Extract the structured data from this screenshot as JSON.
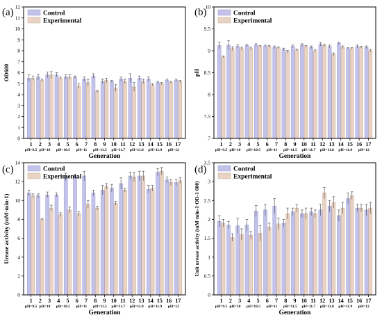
{
  "colors": {
    "control": "#c3c3ea",
    "control_edge": "#9a9ad6",
    "experimental": "#e8d3c4",
    "experimental_edge": "#c9a98f",
    "error": "#555555"
  },
  "chart_data": [
    {
      "panel": "(a)",
      "type": "bar",
      "ylabel": "OD600",
      "xlabel": "Generation",
      "ylim": [
        0,
        12
      ],
      "yticks": [
        0,
        1,
        2,
        3,
        4,
        5,
        6,
        7,
        8,
        9,
        10,
        11,
        12
      ],
      "categories": [
        "1",
        "2",
        "3",
        "4",
        "5",
        "6",
        "7",
        "8",
        "9",
        "10",
        "11",
        "12",
        "13",
        "14",
        "15",
        "16",
        "17"
      ],
      "ph_labels": [
        {
          "label": "pH=9.5",
          "at": 1
        },
        {
          "label": "pH=10",
          "at": 2.5
        },
        {
          "label": "pH=10.5",
          "at": 4.5
        },
        {
          "label": "pH=11",
          "at": 6.5
        },
        {
          "label": "pH=11.5",
          "at": 8.5
        },
        {
          "label": "pH=11.7",
          "at": 10.5
        },
        {
          "label": "pH=11.8",
          "at": 12.5
        },
        {
          "label": "pH=11.9",
          "at": 14.5
        },
        {
          "label": "pH=12",
          "at": 16.5
        }
      ],
      "legend": [
        "Control",
        "Experimental"
      ],
      "legend_position": "top-left",
      "series": [
        {
          "name": "Control",
          "values": [
            5.5,
            5.6,
            5.8,
            5.8,
            5.6,
            5.6,
            5.4,
            5.7,
            5.2,
            5.2,
            5.4,
            5.5,
            5.5,
            5.4,
            5.1,
            5.3,
            5.3
          ],
          "errors": [
            0.3,
            0.25,
            0.25,
            0.2,
            0.2,
            0.1,
            0.2,
            0.2,
            0.2,
            0.1,
            0.2,
            0.4,
            0.2,
            0.2,
            0.1,
            0.1,
            0.1
          ]
        },
        {
          "name": "Experimental",
          "values": [
            5.5,
            5.3,
            5.8,
            5.5,
            5.6,
            4.8,
            5.1,
            4.3,
            5.3,
            4.6,
            5.2,
            4.7,
            5.2,
            4.9,
            5.0,
            5.1,
            5.2
          ],
          "errors": [
            0.2,
            0.1,
            0.3,
            0.1,
            0.2,
            0.2,
            0.3,
            0.1,
            0.2,
            0.3,
            0.2,
            0.4,
            0.2,
            0.1,
            0.1,
            0.1,
            0.1
          ]
        }
      ]
    },
    {
      "panel": "(b)",
      "type": "bar",
      "ylabel": "pH",
      "xlabel": "Generation",
      "ylim": [
        7.0,
        10.0
      ],
      "yticks": [
        7.0,
        7.5,
        8.0,
        8.5,
        9.0,
        9.5,
        10.0
      ],
      "categories": [
        "1",
        "2",
        "3",
        "4",
        "5",
        "6",
        "7",
        "8",
        "9",
        "10",
        "11",
        "12",
        "13",
        "14",
        "15",
        "16",
        "17"
      ],
      "ph_labels": [
        {
          "label": "pH=9.5",
          "at": 1
        },
        {
          "label": "pH=10",
          "at": 2.5
        },
        {
          "label": "pH=10.5",
          "at": 4.5
        },
        {
          "label": "pH=11",
          "at": 6.5
        },
        {
          "label": "pH=11.5",
          "at": 8.5
        },
        {
          "label": "pH=11.7",
          "at": 10.5
        },
        {
          "label": "pH=11.8",
          "at": 12.5
        },
        {
          "label": "pH=11.9",
          "at": 14.5
        },
        {
          "label": "pH=12",
          "at": 16.5
        }
      ],
      "legend": [
        "Control",
        "Experimental"
      ],
      "legend_position": "top-left",
      "series": [
        {
          "name": "Control",
          "values": [
            9.12,
            9.13,
            9.1,
            9.12,
            9.13,
            9.11,
            9.08,
            9.03,
            9.1,
            9.13,
            9.08,
            9.15,
            9.1,
            9.17,
            9.05,
            9.1,
            9.08
          ],
          "errors": [
            0.08,
            0.1,
            0.04,
            0.03,
            0.03,
            0.02,
            0.03,
            0.03,
            0.03,
            0.03,
            0.03,
            0.04,
            0.03,
            0.03,
            0.02,
            0.03,
            0.03
          ]
        },
        {
          "name": "Experimental",
          "values": [
            8.86,
            9.05,
            9.05,
            9.05,
            9.1,
            9.1,
            9.07,
            8.98,
            9.02,
            9.1,
            9.0,
            9.12,
            8.92,
            9.08,
            9.05,
            9.08,
            9.0
          ],
          "errors": [
            0.02,
            0.04,
            0.03,
            0.03,
            0.02,
            0.02,
            0.02,
            0.03,
            0.02,
            0.02,
            0.02,
            0.03,
            0.03,
            0.03,
            0.02,
            0.02,
            0.03
          ]
        }
      ]
    },
    {
      "panel": "(c)",
      "type": "bar",
      "ylabel": "Urease activity (mM·min-1)",
      "xlabel": "Generation",
      "ylim": [
        0,
        14
      ],
      "yticks": [
        0,
        2,
        4,
        6,
        8,
        10,
        12,
        14
      ],
      "categories": [
        "1",
        "2",
        "3",
        "4",
        "5",
        "6",
        "7",
        "8",
        "9",
        "10",
        "11",
        "12",
        "13",
        "14",
        "15",
        "16",
        "17"
      ],
      "ph_labels": [
        {
          "label": "pH=9.5",
          "at": 1
        },
        {
          "label": "pH=10",
          "at": 2.5
        },
        {
          "label": "pH=10.5",
          "at": 4.5
        },
        {
          "label": "pH=11",
          "at": 6.5
        },
        {
          "label": "pH=11.5",
          "at": 8.5
        },
        {
          "label": "pH=11.7",
          "at": 10.5
        },
        {
          "label": "pH=11.8",
          "at": 12.5
        },
        {
          "label": "pH=11.9",
          "at": 14.5
        },
        {
          "label": "pH=12",
          "at": 16.5
        }
      ],
      "legend": [
        "Control",
        "Experimental"
      ],
      "legend_position": "top-left",
      "series": [
        {
          "name": "Control",
          "values": [
            10.8,
            10.5,
            10.6,
            10.6,
            12.5,
            12.6,
            12.6,
            10.8,
            11.1,
            11.3,
            11.8,
            12.6,
            12.6,
            11.2,
            13.0,
            12.2,
            11.9
          ],
          "errors": [
            0.3,
            0.2,
            0.3,
            0.2,
            0.4,
            0.2,
            0.5,
            0.3,
            0.5,
            0.4,
            0.6,
            0.4,
            0.5,
            0.4,
            0.4,
            0.3,
            0.3
          ]
        },
        {
          "name": "Experimental",
          "values": [
            10.5,
            8.0,
            9.2,
            8.5,
            9.0,
            8.6,
            9.6,
            9.2,
            11.5,
            9.7,
            11.1,
            12.5,
            12.6,
            11.3,
            13.1,
            11.9,
            12.1
          ],
          "errors": [
            0.2,
            0.1,
            0.3,
            0.2,
            0.3,
            0.2,
            0.4,
            0.2,
            0.3,
            0.2,
            0.2,
            0.5,
            0.5,
            0.3,
            0.4,
            0.3,
            0.3
          ]
        }
      ]
    },
    {
      "panel": "(d)",
      "type": "bar",
      "ylabel": "Unit urease activity (mM·min-1·OD-1 600)",
      "xlabel": "Generation",
      "ylim": [
        0.0,
        3.5
      ],
      "yticks": [
        0.0,
        0.5,
        1.0,
        1.5,
        2.0,
        2.5,
        3.0,
        3.5
      ],
      "categories": [
        "1",
        "2",
        "3",
        "4",
        "5",
        "6",
        "7",
        "8",
        "9",
        "10",
        "11",
        "12",
        "13",
        "14",
        "15",
        "16",
        "17"
      ],
      "ph_labels": [
        {
          "label": "pH=9.5",
          "at": 1
        },
        {
          "label": "pH=10",
          "at": 2.5
        },
        {
          "label": "pH=10.5",
          "at": 4.5
        },
        {
          "label": "pH=11",
          "at": 6.5
        },
        {
          "label": "pH=11.5",
          "at": 8.5
        },
        {
          "label": "pH=11.7",
          "at": 10.5
        },
        {
          "label": "pH=11.8",
          "at": 12.5
        },
        {
          "label": "pH=11.9",
          "at": 14.5
        },
        {
          "label": "pH=12",
          "at": 16.5
        }
      ],
      "legend": [
        "Control",
        "Experimental"
      ],
      "legend_position": "top-left",
      "series": [
        {
          "name": "Control",
          "values": [
            1.95,
            1.85,
            1.83,
            1.85,
            2.22,
            2.25,
            2.35,
            1.9,
            2.2,
            2.15,
            2.2,
            2.25,
            2.35,
            2.1,
            2.55,
            2.3,
            2.25
          ],
          "errors": [
            0.15,
            0.1,
            0.2,
            0.15,
            0.15,
            0.15,
            0.2,
            0.1,
            0.1,
            0.1,
            0.1,
            0.15,
            0.15,
            0.15,
            0.15,
            0.1,
            0.15
          ]
        },
        {
          "name": "Experimental",
          "values": [
            1.9,
            1.52,
            1.6,
            1.58,
            1.63,
            1.8,
            1.88,
            2.15,
            2.3,
            2.15,
            2.15,
            2.7,
            2.45,
            2.3,
            2.63,
            2.3,
            2.3
          ],
          "errors": [
            0.1,
            0.1,
            0.15,
            0.1,
            0.2,
            0.1,
            0.15,
            0.15,
            0.1,
            0.15,
            0.1,
            0.15,
            0.15,
            0.15,
            0.1,
            0.1,
            0.15
          ]
        }
      ]
    }
  ]
}
